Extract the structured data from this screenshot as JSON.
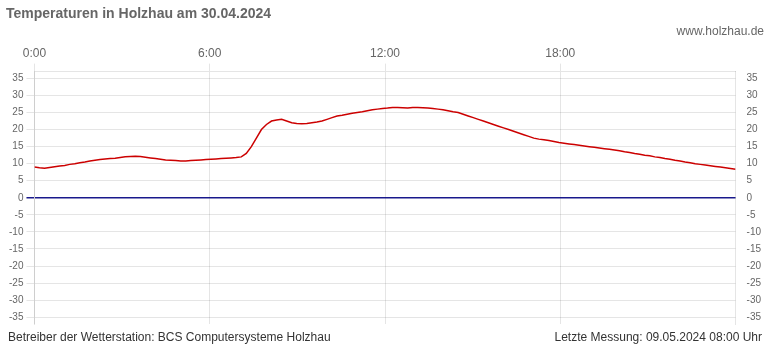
{
  "chart_data": {
    "type": "line",
    "title": "Temperaturen in Holzhau am 30.04.2024",
    "subtitle": "www.holzhau.de",
    "annotations": [
      "Betreiber der Wetterstation: BCS Computersysteme Holzhau",
      "Letzte Messung: 09.05.2024 08:00 Uhr"
    ],
    "x": [
      0,
      0.1727,
      0.3453,
      0.518,
      0.6906,
      0.8633,
      1.036,
      1.2086,
      1.3813,
      1.554,
      1.7266,
      1.8993,
      2.0719,
      2.2446,
      2.4173,
      2.5899,
      2.7626,
      2.9353,
      3.1079,
      3.2806,
      3.4532,
      3.6259,
      3.7986,
      3.9712,
      4.1439,
      4.3165,
      4.4892,
      4.6619,
      4.8345,
      5.0072,
      5.1799,
      5.3525,
      5.5252,
      5.6978,
      5.8705,
      6.0432,
      6.2158,
      6.3885,
      6.5612,
      6.7338,
      6.9065,
      7.0791,
      7.2518,
      7.4245,
      7.5971,
      7.7698,
      7.9424,
      8.1151,
      8.2878,
      8.4604,
      8.6331,
      8.8058,
      8.9784,
      9.1511,
      9.3237,
      9.4964,
      9.6691,
      9.8417,
      10.0144,
      10.1871,
      10.3597,
      10.5324,
      10.705,
      10.8777,
      11.0504,
      11.223,
      11.3957,
      11.5683,
      11.741,
      11.9137,
      12.0863,
      12.259,
      12.4317,
      12.6043,
      12.777,
      12.9496,
      13.1223,
      13.295,
      13.4676,
      13.6403,
      13.8129,
      13.9856,
      14.1583,
      14.3309,
      14.5036,
      14.6763,
      14.8489,
      15.0216,
      15.1942,
      15.3669,
      15.5396,
      15.7122,
      15.8849,
      16.0576,
      16.2302,
      16.4029,
      16.5755,
      16.7482,
      16.9209,
      17.0935,
      17.2662,
      17.4388,
      17.6115,
      17.7842,
      17.9568,
      18.1295,
      18.3022,
      18.4748,
      18.6475,
      18.8201,
      18.9928,
      19.1655,
      19.3381,
      19.5108,
      19.6835,
      19.8561,
      20.0288,
      20.2014,
      20.3741,
      20.5468,
      20.7194,
      20.8921,
      21.0647,
      21.2374,
      21.4101,
      21.5827,
      21.7554,
      21.9281,
      22.1007,
      22.2734,
      22.446,
      22.6187,
      22.7914,
      22.964,
      23.1367,
      23.3094,
      23.482,
      23.6547,
      23.8273,
      24
    ],
    "values": [
      9.0,
      8.8,
      8.7,
      8.9,
      9.1,
      9.3,
      9.5,
      9.8,
      10.0,
      10.3,
      10.5,
      10.8,
      11.0,
      11.2,
      11.4,
      11.5,
      11.6,
      11.8,
      12.0,
      12.1,
      12.2,
      12.1,
      11.9,
      11.7,
      11.5,
      11.3,
      11.1,
      11.0,
      10.9,
      10.8,
      10.8,
      10.9,
      11.0,
      11.1,
      11.2,
      11.3,
      11.4,
      11.5,
      11.6,
      11.7,
      11.8,
      12.0,
      13.0,
      15.0,
      17.5,
      20.0,
      21.5,
      22.5,
      22.8,
      23.0,
      22.5,
      22.0,
      21.8,
      21.7,
      21.8,
      22.0,
      22.2,
      22.5,
      23.0,
      23.5,
      24.0,
      24.2,
      24.5,
      24.8,
      25.0,
      25.2,
      25.5,
      25.8,
      26.0,
      26.2,
      26.3,
      26.5,
      26.5,
      26.4,
      26.3,
      26.5,
      26.5,
      26.4,
      26.3,
      26.2,
      26.0,
      25.8,
      25.5,
      25.2,
      25.0,
      24.5,
      24.0,
      23.5,
      23.0,
      22.5,
      22.0,
      21.5,
      21.0,
      20.5,
      20.0,
      19.5,
      19.0,
      18.5,
      18.0,
      17.5,
      17.2,
      17.0,
      16.8,
      16.5,
      16.2,
      16.0,
      15.8,
      15.6,
      15.4,
      15.2,
      15.0,
      14.8,
      14.6,
      14.4,
      14.2,
      14.0,
      13.8,
      13.5,
      13.3,
      13.0,
      12.8,
      12.5,
      12.3,
      12.0,
      11.8,
      11.5,
      11.3,
      11.0,
      10.8,
      10.5,
      10.3,
      10.0,
      9.8,
      9.6,
      9.4,
      9.2,
      9.0,
      8.8,
      8.6,
      8.4
    ],
    "color": "#cc0000",
    "xlim": [
      0,
      24
    ],
    "xticks": [
      {
        "value": 0,
        "label": "0:00"
      },
      {
        "value": 6,
        "label": "6:00"
      },
      {
        "value": 12,
        "label": "12:00"
      },
      {
        "value": 18,
        "label": "18:00"
      }
    ],
    "ylim": [
      -37,
      37
    ],
    "yticks": [
      -35,
      -30,
      -25,
      -20,
      -15,
      -10,
      -5,
      0,
      5,
      10,
      15,
      20,
      25,
      30,
      35
    ],
    "grid": true
  }
}
